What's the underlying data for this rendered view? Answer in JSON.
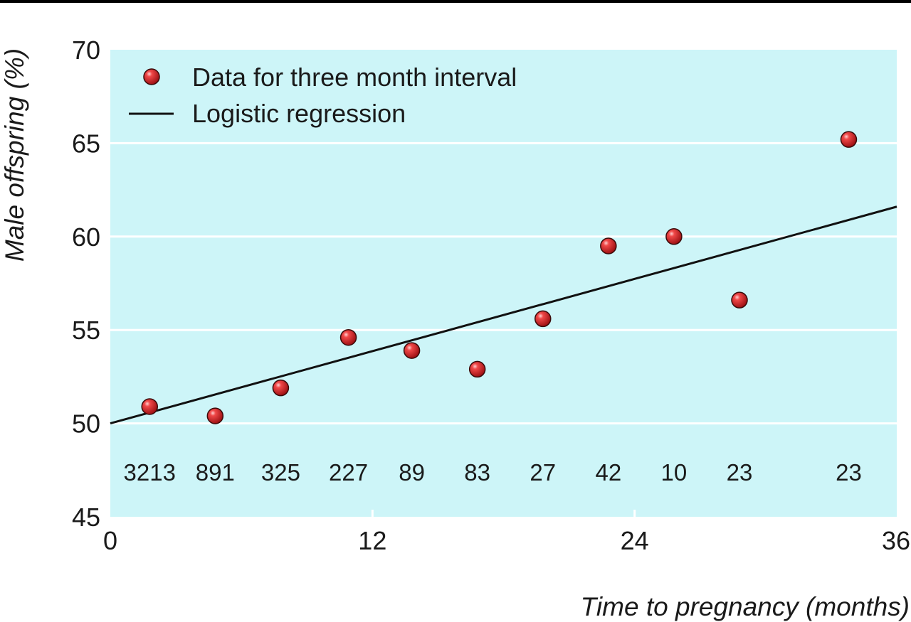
{
  "chart_data": {
    "type": "scatter",
    "title": "",
    "xlabel": "Time to pregnancy (months)",
    "ylabel": "Male offspring (%)",
    "xlim": [
      0,
      36
    ],
    "ylim": [
      45,
      70
    ],
    "x_ticks": [
      0,
      12,
      24,
      36
    ],
    "x_tick_labels": [
      "0",
      "12",
      "24",
      "36"
    ],
    "y_ticks": [
      45,
      50,
      55,
      60,
      65,
      70
    ],
    "y_tick_labels": [
      "45",
      "50",
      "55",
      "60",
      "65",
      "70"
    ],
    "gridlines": "horizontal",
    "legend_position": "top-left",
    "series": [
      {
        "name": "Data for three month interval",
        "type": "scatter",
        "x": [
          1.8,
          4.8,
          7.8,
          10.9,
          13.8,
          16.8,
          19.8,
          22.8,
          25.8,
          28.8,
          33.8
        ],
        "y": [
          50.9,
          50.4,
          51.9,
          54.6,
          53.9,
          52.9,
          55.6,
          59.5,
          60.0,
          56.6,
          65.2
        ],
        "counts": [
          "3213",
          "891",
          "325",
          "227",
          "89",
          "83",
          "27",
          "42",
          "10",
          "23",
          "23"
        ]
      },
      {
        "name": "Logistic regression",
        "type": "line",
        "x": [
          0,
          36
        ],
        "y": [
          50.0,
          61.6
        ]
      }
    ],
    "colors": {
      "plot_background": "#cdf5f8",
      "gridline": "#ffffff",
      "marker_fill": "#e0262b",
      "marker_stroke": "#3a0a0a",
      "line": "#111111",
      "top_rule": "#000000"
    }
  }
}
